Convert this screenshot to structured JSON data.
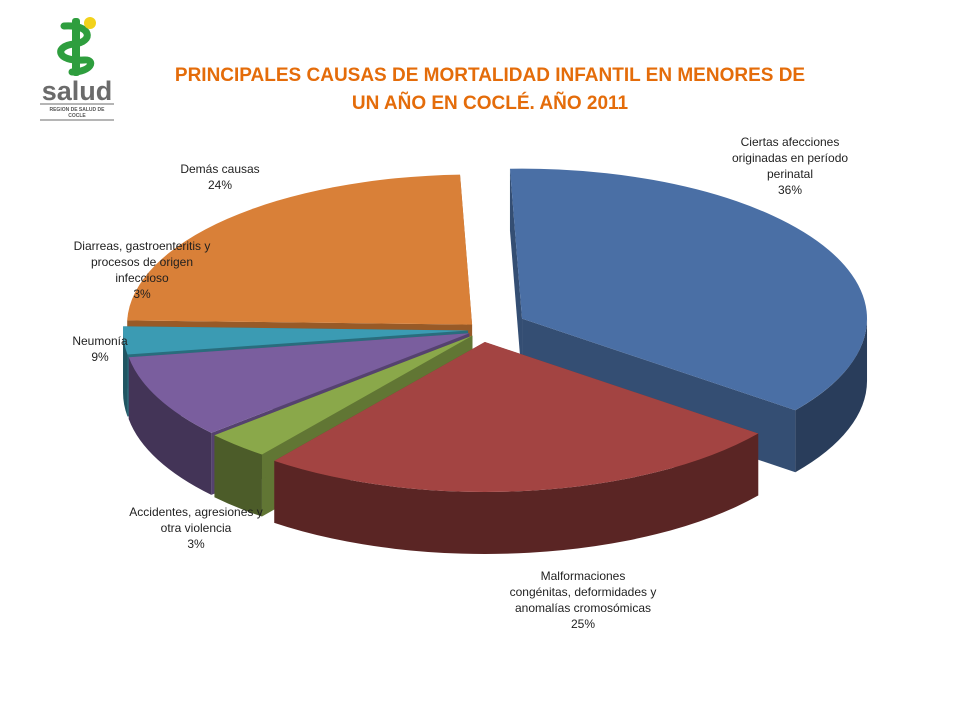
{
  "logo": {
    "icon": "snake-emblem-icon",
    "word": "salud",
    "sub1": "REGION DE SALUD DE",
    "sub2": "COCLE",
    "colors": {
      "green": "#2e9e3e",
      "yellow": "#f2d21b",
      "gray": "#6b6b6b"
    }
  },
  "header": {
    "title_line1": "PRINCIPALES CAUSAS DE MORTALIDAD INFANTIL EN MENORES DE",
    "title_line2": "UN AÑO EN COCLÉ.  AÑO 2011",
    "color": "#e46c0a"
  },
  "chart_data": {
    "type": "pie",
    "style": "3d-exploded",
    "title": "PRINCIPALES CAUSAS DE MORTALIDAD INFANTIL EN MENORES DE UN AÑO EN COCLÉ.  AÑO 2011",
    "slices": [
      {
        "lines": [
          "Ciertas afecciones",
          "originadas en período",
          "perinatal"
        ],
        "pct": "36%",
        "value": 36,
        "color": "#4a6fa5"
      },
      {
        "lines": [
          "Malformaciones",
          "congénitas, deformidades y",
          "anomalías cromosómicas"
        ],
        "pct": "25%",
        "value": 25,
        "color": "#a34442"
      },
      {
        "lines": [
          "Accidentes, agresiones y",
          "otra violencia"
        ],
        "pct": "3%",
        "value": 3,
        "color": "#8aa84a"
      },
      {
        "lines": [
          "Neumonía"
        ],
        "pct": "9%",
        "value": 9,
        "color": "#7a5e9e"
      },
      {
        "lines": [
          "Diarreas, gastroenteritis y",
          "procesos de origen",
          "infeccioso"
        ],
        "pct": "3%",
        "value": 3,
        "color": "#3b9bb3"
      },
      {
        "lines": [
          "Demás causas"
        ],
        "pct": "24%",
        "value": 24,
        "color": "#d98038"
      }
    ]
  }
}
